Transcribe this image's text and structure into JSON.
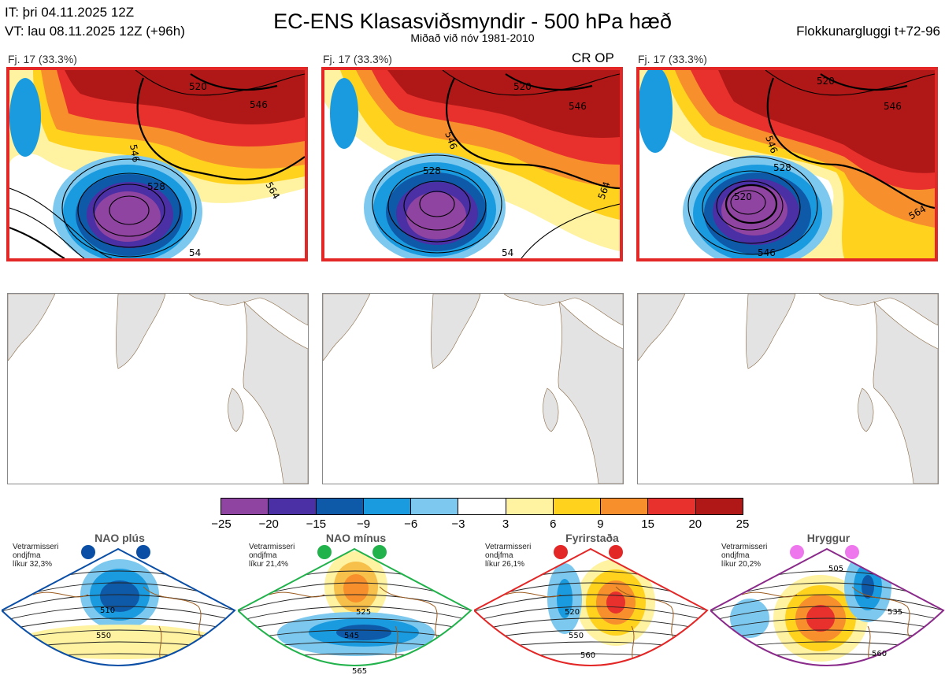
{
  "header": {
    "it_line": "IT: þri 04.11.2025 12Z",
    "vt_line": "VT: lau 08.11.2025 12Z  (+96h)",
    "title": "EC-ENS Klasasviðsmyndir - 500 hPa hæð",
    "subtitle": "Miðað við nóv 1981-2010",
    "window_label": "Flokkunargluggi t+72-96"
  },
  "panels": [
    {
      "label": "Fj. 17 (33.3%)",
      "tag": "",
      "contours": [
        "520",
        "546",
        "546",
        "528",
        "564",
        "54"
      ]
    },
    {
      "label": "Fj. 17 (33.3%)",
      "tag": "CR OP",
      "contours": [
        "520",
        "546",
        "546",
        "528",
        "564",
        "54"
      ]
    },
    {
      "label": "Fj. 17 (33.3%)",
      "tag": "",
      "contours": [
        "520",
        "546",
        "546",
        "528",
        "520",
        "564",
        "546"
      ]
    }
  ],
  "colorbar": {
    "colors": [
      "#8e44a0",
      "#4a2fa5",
      "#0f5aa8",
      "#1a9be0",
      "#7cc8ee",
      "#ffffff",
      "#fff2a0",
      "#ffd21e",
      "#f7902c",
      "#e8312c",
      "#b01818"
    ],
    "ticks": [
      "−25",
      "−20",
      "−15",
      "−9",
      "−6",
      "−3",
      "3",
      "6",
      "9",
      "15",
      "20",
      "25"
    ]
  },
  "regimes": [
    {
      "name": "NAO plús",
      "caption1": "Vetrarmisseri",
      "caption2": "ondjfma",
      "caption3": "líkur 32,3%",
      "dot_color": "#0a4ea6",
      "frame_color": "#0a4ea6",
      "labels": [
        "510",
        "550"
      ]
    },
    {
      "name": "NAO mínus",
      "caption1": "Vetrarmisseri",
      "caption2": "ondjfma",
      "caption3": "líkur 21,4%",
      "dot_color": "#22b24c",
      "frame_color": "#22b24c",
      "labels": [
        "525",
        "545",
        "565"
      ]
    },
    {
      "name": "Fyrirstaða",
      "caption1": "Vetrarmisseri",
      "caption2": "ondjfma",
      "caption3": "líkur 26,1%",
      "dot_color": "#e32626",
      "frame_color": "#e32626",
      "labels": [
        "520",
        "550",
        "560"
      ]
    },
    {
      "name": "Hryggur",
      "caption1": "Vetrarmisseri",
      "caption2": "ondjfma",
      "caption3": "líkur 20,2%",
      "dot_color": "#ee77ee",
      "frame_color": "#8a2a8a",
      "labels": [
        "505",
        "535",
        "560"
      ]
    }
  ]
}
